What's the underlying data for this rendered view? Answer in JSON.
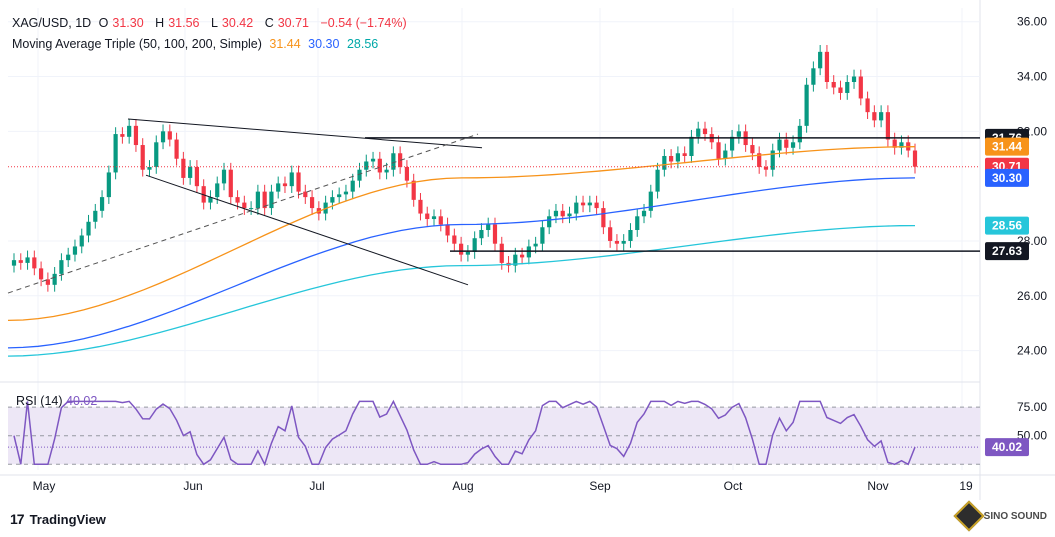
{
  "header": {
    "symbol": "XAG/USD, 1D",
    "o_label": "O",
    "open": "31.30",
    "h_label": "H",
    "high": "31.56",
    "l_label": "L",
    "low": "30.42",
    "c_label": "C",
    "close": "30.71",
    "change": "−0.54 (−1.74%)",
    "ma_name": "Moving Average Triple (50, 100, 200, Simple)",
    "ma50": "31.44",
    "ma100": "30.30",
    "ma200": "28.56"
  },
  "rsi": {
    "name": "RSI (14)",
    "value": "40.02",
    "levels": [
      "75.00",
      "50.00"
    ]
  },
  "price_axis": {
    "ticks": [
      "36.00",
      "34.00",
      "32.00",
      "28.00",
      "26.00",
      "24.00"
    ]
  },
  "time_axis": {
    "labels": [
      "May",
      "Jun",
      "Jul",
      "Aug",
      "Sep",
      "Oct",
      "Nov",
      "19"
    ]
  },
  "level_badges": [
    {
      "text": "31.76",
      "color": "#131722"
    },
    {
      "text": "31.44",
      "color": "#f7931a"
    },
    {
      "text": "30.71",
      "color": "#f23645"
    },
    {
      "text": "30.30",
      "color": "#2962ff"
    },
    {
      "text": "28.56",
      "color": "#26c6da"
    },
    {
      "text": "27.63",
      "color": "#131722"
    }
  ],
  "rsi_badge": {
    "text": "40.02",
    "color": "#7e57c2"
  },
  "colors": {
    "up": "#089981",
    "down": "#f23645",
    "ma50": "#f7931a",
    "ma100": "#2962ff",
    "ma200": "#26c6da",
    "rsi": "#7e57c2",
    "rsi_band": "#ede7f6"
  },
  "footer": {
    "brand": "TradingView",
    "watermark": "SINO SOUND"
  },
  "chart_data": {
    "type": "candlestick",
    "symbol": "XAG/USD",
    "timeframe": "1D",
    "ylim": [
      23.0,
      36.5
    ],
    "horizontal_levels": [
      31.76,
      27.63
    ],
    "last_close": 30.71,
    "close_series": [
      27.3,
      27.2,
      27.4,
      27.0,
      26.6,
      26.4,
      26.8,
      27.3,
      27.5,
      27.8,
      28.2,
      28.7,
      29.1,
      29.6,
      30.5,
      31.9,
      31.8,
      32.2,
      31.5,
      30.6,
      30.7,
      31.6,
      32.0,
      31.7,
      31.0,
      30.3,
      30.7,
      30.0,
      29.4,
      29.6,
      30.1,
      30.6,
      29.6,
      29.4,
      29.2,
      29.2,
      29.8,
      29.2,
      29.8,
      30.1,
      30.0,
      30.5,
      29.8,
      29.6,
      29.2,
      29.0,
      29.4,
      29.6,
      29.7,
      29.8,
      30.2,
      30.6,
      30.9,
      31.0,
      30.5,
      30.6,
      31.2,
      30.7,
      30.2,
      29.5,
      29.0,
      28.8,
      28.9,
      28.6,
      28.2,
      27.9,
      27.5,
      27.6,
      28.1,
      28.4,
      28.6,
      27.9,
      27.2,
      27.1,
      27.5,
      27.4,
      27.8,
      27.9,
      28.5,
      28.9,
      29.1,
      28.9,
      29.0,
      29.4,
      29.3,
      29.4,
      29.2,
      28.5,
      28.0,
      27.9,
      28.0,
      28.4,
      28.9,
      29.1,
      29.8,
      30.6,
      31.1,
      30.9,
      31.2,
      31.1,
      31.8,
      32.1,
      31.9,
      31.6,
      31.0,
      31.3,
      31.8,
      32.0,
      31.5,
      31.2,
      30.7,
      30.6,
      31.3,
      31.7,
      31.4,
      31.6,
      32.2,
      33.7,
      34.3,
      34.9,
      33.8,
      33.6,
      33.4,
      33.8,
      34.0,
      33.2,
      32.7,
      32.4,
      32.7,
      31.7,
      31.4,
      31.6,
      31.3,
      30.71
    ],
    "ma50": [
      25.1,
      30.3,
      31.44
    ],
    "ma100": [
      24.1,
      28.6,
      30.3
    ],
    "ma200": [
      23.8,
      27.1,
      28.56
    ],
    "rsi_14": {
      "levels": [
        75,
        50
      ],
      "last": 40.02
    }
  }
}
